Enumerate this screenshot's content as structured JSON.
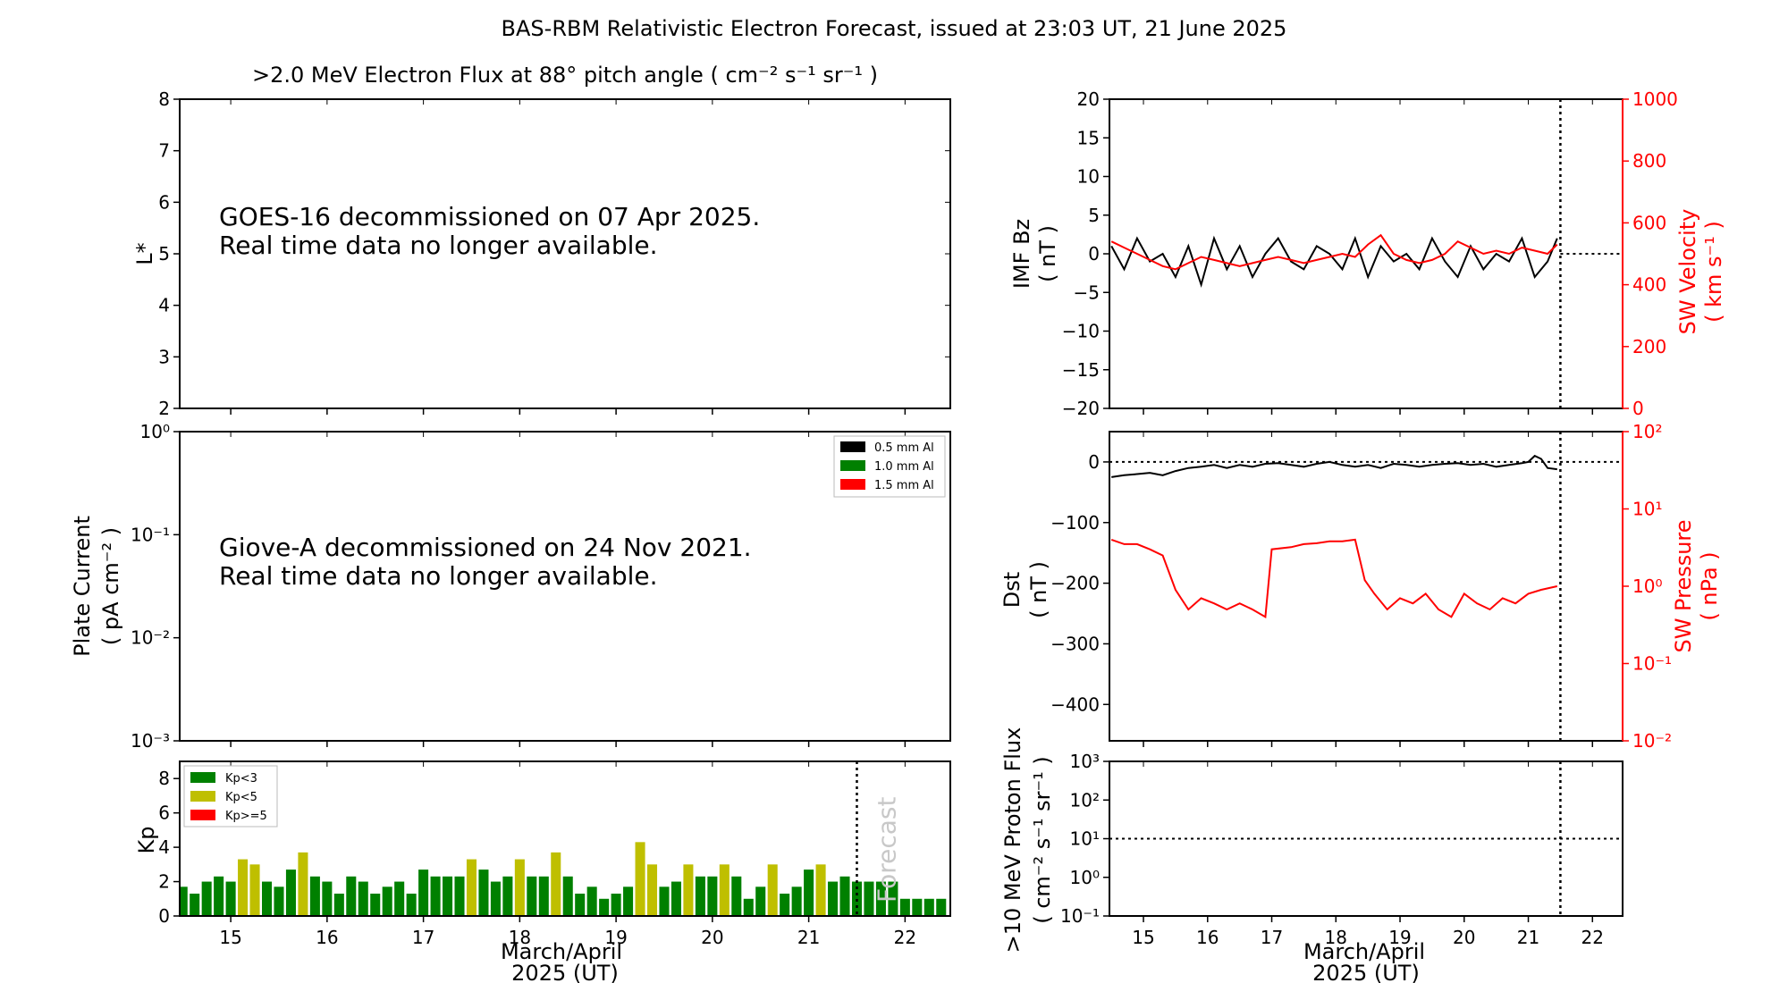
{
  "figure": {
    "title": "BAS-RBM Relativistic Electron Forecast, issued at 23:03 UT, 21 June 2025",
    "colors": {
      "black": "#000000",
      "red": "#ff0000",
      "green": "#008000",
      "olive": "#bfbf00",
      "forecast_text": "#c8c8c8"
    }
  },
  "panels": {
    "goes": {
      "title": ">2.0 MeV Electron Flux at 88° pitch angle ( cm⁻² s⁻¹ sr⁻¹ )",
      "ylabel": "L*",
      "message_line1": "GOES-16 decommissioned on 07 Apr 2025.",
      "message_line2": "Real time data no longer available."
    },
    "giove": {
      "ylabel_line1": "Plate Current",
      "ylabel_line2": "( pA cm⁻² )",
      "message_line1": "Giove-A decommissioned on 24 Nov 2021.",
      "message_line2": "Real time data no longer available.",
      "legend": [
        "0.5 mm Al",
        "1.0 mm Al",
        "1.5 mm Al"
      ]
    },
    "kp": {
      "ylabel": "Kp",
      "legend": [
        "Kp<3",
        "Kp<5",
        "Kp>=5"
      ],
      "forecast_label": "Forecast",
      "xlabel_line1": "March/April",
      "xlabel_line2": "2025 (UT)"
    },
    "imf": {
      "ylabel_line1": "IMF Bz",
      "ylabel_line2": "( nT )",
      "y2label_line1": "SW Velocity",
      "y2label_line2": "( km s⁻¹ )"
    },
    "dst": {
      "ylabel_line1": "Dst",
      "ylabel_line2": "( nT )",
      "y2label_line1": "SW Pressure",
      "y2label_line2": "( nPa )"
    },
    "proton": {
      "ylabel_line1": ">10 MeV Proton Flux",
      "ylabel_line2": "( cm⁻² s⁻¹ sr⁻¹ )",
      "xlabel_line1": "March/April",
      "xlabel_line2": "2025 (UT)"
    }
  },
  "chart_data": [
    {
      "type": "line",
      "panel": "goes",
      "ylim": [
        2,
        8
      ],
      "xlim": [
        14.47,
        22.47
      ],
      "yticks": [
        "2",
        "3",
        "4",
        "5",
        "6",
        "7",
        "8"
      ],
      "series": []
    },
    {
      "type": "line",
      "panel": "giove",
      "yscale": "log",
      "ylim": [
        0.001,
        1
      ],
      "xlim": [
        14.47,
        22.47
      ],
      "yticks": [
        "10⁻³",
        "10⁻²",
        "10⁻¹",
        "10⁰"
      ],
      "series": []
    },
    {
      "type": "bar",
      "panel": "kp",
      "ylim": [
        0,
        9
      ],
      "xlim": [
        14.47,
        22.47
      ],
      "xticks": [
        "15",
        "16",
        "17",
        "18",
        "19",
        "20",
        "21",
        "22"
      ],
      "yticks": [
        "0",
        "2",
        "4",
        "6",
        "8"
      ],
      "forecast_start": 21.5,
      "x": [
        14.5,
        14.625,
        14.75,
        14.875,
        15.0,
        15.125,
        15.25,
        15.375,
        15.5,
        15.625,
        15.75,
        15.875,
        16.0,
        16.125,
        16.25,
        16.375,
        16.5,
        16.625,
        16.75,
        16.875,
        17.0,
        17.125,
        17.25,
        17.375,
        17.5,
        17.625,
        17.75,
        17.875,
        18.0,
        18.125,
        18.25,
        18.375,
        18.5,
        18.625,
        18.75,
        18.875,
        19.0,
        19.125,
        19.25,
        19.375,
        19.5,
        19.625,
        19.75,
        19.875,
        20.0,
        20.125,
        20.25,
        20.375,
        20.5,
        20.625,
        20.75,
        20.875,
        21.0,
        21.125,
        21.25,
        21.375,
        21.5,
        21.625,
        21.75,
        21.875,
        22.0,
        22.125,
        22.25,
        22.375
      ],
      "values": [
        1.7,
        1.3,
        2.0,
        2.3,
        2.0,
        3.3,
        3.0,
        2.0,
        1.7,
        2.7,
        3.7,
        2.3,
        2.0,
        1.3,
        2.3,
        2.0,
        1.3,
        1.7,
        2.0,
        1.3,
        2.7,
        2.3,
        2.3,
        2.3,
        3.3,
        2.7,
        2.0,
        2.3,
        3.3,
        2.3,
        2.3,
        3.7,
        2.3,
        1.3,
        1.7,
        1.0,
        1.3,
        1.7,
        4.3,
        3.0,
        1.7,
        2.0,
        3.0,
        2.3,
        2.3,
        3.0,
        2.3,
        1.0,
        1.7,
        3.0,
        1.3,
        1.7,
        2.7,
        3.0,
        2.0,
        2.3,
        2.0,
        2.0,
        2.0,
        2.0,
        1.0,
        1.0,
        1.0,
        1.0
      ]
    },
    {
      "type": "line",
      "panel": "imf",
      "xlim": [
        14.47,
        22.47
      ],
      "ylim": [
        -20,
        20
      ],
      "y2lim": [
        0,
        1000
      ],
      "xticks": [
        "15",
        "16",
        "17",
        "18",
        "19",
        "20",
        "21",
        "22"
      ],
      "yticks": [
        "−20",
        "−15",
        "−10",
        "−5",
        "0",
        "5",
        "10",
        "15",
        "20"
      ],
      "y2ticks": [
        "0",
        "200",
        "400",
        "600",
        "800",
        "1000"
      ],
      "issue_time": 21.5,
      "series": [
        {
          "axis": "left",
          "x": [
            14.5,
            14.7,
            14.9,
            15.1,
            15.3,
            15.5,
            15.7,
            15.9,
            16.1,
            16.3,
            16.5,
            16.7,
            16.9,
            17.1,
            17.3,
            17.5,
            17.7,
            17.9,
            18.1,
            18.3,
            18.5,
            18.7,
            18.9,
            19.1,
            19.3,
            19.5,
            19.7,
            19.9,
            20.1,
            20.3,
            20.5,
            20.7,
            20.9,
            21.1,
            21.3,
            21.45
          ],
          "y": [
            1,
            -2,
            2,
            -1,
            0,
            -3,
            1,
            -4,
            2,
            -2,
            1,
            -3,
            0,
            2,
            -1,
            -2,
            1,
            0,
            -2,
            2,
            -3,
            1,
            -1,
            0,
            -2,
            2,
            -1,
            -3,
            1,
            -2,
            0,
            -1,
            2,
            -3,
            -1,
            2
          ]
        },
        {
          "axis": "right",
          "x": [
            14.5,
            14.7,
            14.9,
            15.1,
            15.3,
            15.5,
            15.7,
            15.9,
            16.1,
            16.3,
            16.5,
            16.7,
            16.9,
            17.1,
            17.3,
            17.5,
            17.7,
            17.9,
            18.1,
            18.3,
            18.5,
            18.7,
            18.9,
            19.1,
            19.3,
            19.5,
            19.7,
            19.9,
            20.1,
            20.3,
            20.5,
            20.7,
            20.9,
            21.1,
            21.3,
            21.45
          ],
          "y": [
            540,
            520,
            500,
            480,
            460,
            450,
            470,
            490,
            480,
            470,
            460,
            470,
            480,
            490,
            480,
            470,
            480,
            490,
            500,
            490,
            530,
            560,
            500,
            480,
            470,
            480,
            500,
            540,
            520,
            500,
            510,
            500,
            520,
            510,
            500,
            530
          ]
        }
      ]
    },
    {
      "type": "line",
      "panel": "dst",
      "xlim": [
        14.47,
        22.47
      ],
      "ylim": [
        -460,
        50
      ],
      "y2scale": "log",
      "y2lim": [
        0.01,
        100
      ],
      "yticks": [
        "−400",
        "−300",
        "−200",
        "−100",
        "0"
      ],
      "y2ticks": [
        "10⁻²",
        "10⁻¹",
        "10⁰",
        "10¹",
        "10²"
      ],
      "issue_time": 21.5,
      "series": [
        {
          "axis": "left",
          "x": [
            14.5,
            14.7,
            14.9,
            15.1,
            15.3,
            15.5,
            15.7,
            15.9,
            16.1,
            16.3,
            16.5,
            16.7,
            16.9,
            17.1,
            17.3,
            17.5,
            17.7,
            17.9,
            18.1,
            18.3,
            18.5,
            18.7,
            18.9,
            19.1,
            19.3,
            19.5,
            19.7,
            19.9,
            20.1,
            20.3,
            20.5,
            20.7,
            20.9,
            21.0,
            21.1,
            21.2,
            21.3,
            21.45
          ],
          "y": [
            -25,
            -22,
            -20,
            -18,
            -22,
            -15,
            -10,
            -8,
            -5,
            -10,
            -5,
            -8,
            -3,
            -2,
            -5,
            -8,
            -3,
            0,
            -5,
            -8,
            -5,
            -10,
            -3,
            -5,
            -8,
            -5,
            -3,
            -2,
            -5,
            -3,
            -8,
            -5,
            -2,
            0,
            10,
            5,
            -10,
            -12
          ]
        },
        {
          "axis": "right",
          "x": [
            14.5,
            14.7,
            14.9,
            15.1,
            15.3,
            15.5,
            15.7,
            15.9,
            16.1,
            16.3,
            16.5,
            16.7,
            16.9,
            17.0,
            17.3,
            17.5,
            17.7,
            17.9,
            18.1,
            18.3,
            18.45,
            18.6,
            18.8,
            19.0,
            19.2,
            19.4,
            19.6,
            19.8,
            20.0,
            20.2,
            20.4,
            20.6,
            20.8,
            21.0,
            21.2,
            21.45
          ],
          "y": [
            4,
            3.5,
            3.5,
            3,
            2.5,
            0.9,
            0.5,
            0.7,
            0.6,
            0.5,
            0.6,
            0.5,
            0.4,
            3,
            3.2,
            3.5,
            3.6,
            3.8,
            3.8,
            4,
            1.2,
            0.8,
            0.5,
            0.7,
            0.6,
            0.8,
            0.5,
            0.4,
            0.8,
            0.6,
            0.5,
            0.7,
            0.6,
            0.8,
            0.9,
            1.0
          ]
        }
      ]
    },
    {
      "type": "line",
      "panel": "proton",
      "xlim": [
        14.47,
        22.47
      ],
      "yscale": "log",
      "ylim": [
        0.1,
        1000
      ],
      "xticks": [
        "15",
        "16",
        "17",
        "18",
        "19",
        "20",
        "21",
        "22"
      ],
      "yticks": [
        "10⁻¹",
        "10⁰",
        "10¹",
        "10²",
        "10³"
      ],
      "threshold": 10,
      "issue_time": 21.5,
      "series": []
    }
  ]
}
